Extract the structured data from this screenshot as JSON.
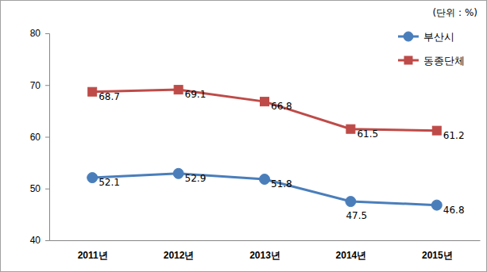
{
  "chart_data": {
    "type": "line",
    "y_label": "(단위 : %)",
    "categories": [
      "2011년",
      "2012년",
      "2013년",
      "2014년",
      "2015년"
    ],
    "series": [
      {
        "name": "부산시",
        "color": "#4a7ebb",
        "marker": "circle",
        "line_style": "solid",
        "values": [
          52.1,
          52.9,
          51.8,
          47.5,
          46.8
        ]
      },
      {
        "name": "동종단체",
        "color": "#be4b48",
        "marker": "square",
        "line_style": "solid",
        "values": [
          68.7,
          69.1,
          66.8,
          61.5,
          61.2
        ]
      }
    ],
    "ylim": [
      40,
      80
    ],
    "yticks": [
      40,
      50,
      60,
      70,
      80
    ],
    "grid": false,
    "legend": "top-right",
    "data_labels": true
  }
}
